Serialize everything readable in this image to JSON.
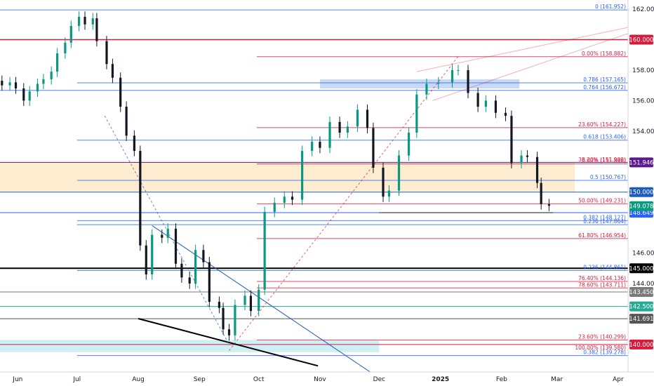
{
  "chart_data": {
    "type": "candlestick",
    "price_axis": {
      "ticks": [
        "162.000",
        "158.000",
        "156.000",
        "154.000",
        "146.000",
        "144.000"
      ],
      "tick_values": [
        162,
        158,
        156,
        154,
        146,
        144
      ],
      "ylim": [
        138.2,
        162.6
      ]
    },
    "time_axis": {
      "labels": [
        "Jun",
        "Jul",
        "Aug",
        "Sep",
        "Oct",
        "Nov",
        "Dec",
        "2025",
        "Feb",
        "Mar",
        "Apr"
      ],
      "dates": [
        "2024-06-01",
        "2024-07-01",
        "2024-08-01",
        "2024-09-01",
        "2024-10-01",
        "2024-11-01",
        "2024-12-01",
        "2025-01-01",
        "2025-02-01",
        "2025-03-01",
        "2025-04-01"
      ],
      "xlim": [
        "2024-05-23",
        "2025-04-06"
      ]
    },
    "horizontal_levels": [
      {
        "label": "160.000",
        "value": 160.0,
        "color": "#d81b3c"
      },
      {
        "label": "151.946",
        "value": 151.946,
        "color": "#5a1a8c"
      },
      {
        "label": "150.000",
        "value": 150.0,
        "color": "#1e5bbf"
      },
      {
        "label": "148.649",
        "value": 148.649,
        "color": "#2962ff"
      },
      {
        "label": "145.000",
        "value": 145.0,
        "color": "#000000"
      },
      {
        "label": "143.450",
        "value": 143.45,
        "color": "#7a7a7a"
      },
      {
        "label": "142.500",
        "value": 142.5,
        "color": "#22ab94"
      },
      {
        "label": "141.691",
        "value": 141.691,
        "color": "#555555"
      },
      {
        "label": "140.000",
        "value": 140.0,
        "color": "#d81b3c"
      }
    ],
    "current_price": {
      "label": "149.078",
      "value": 149.078,
      "color": "#089981"
    },
    "fib_labels": [
      {
        "text": "0 (161.952)",
        "value": 161.952,
        "color": "#2962ff"
      },
      {
        "text": "0.786 (157.165)",
        "value": 157.165,
        "color": "#2962ff"
      },
      {
        "text": "0.764 (156.672)",
        "value": 156.672,
        "color": "#2962ff"
      },
      {
        "text": "0.618 (153.406)",
        "value": 153.406,
        "color": "#2962ff"
      },
      {
        "text": "0.5 (150.767)",
        "value": 150.767,
        "color": "#2962ff"
      },
      {
        "text": "0.382 (148.127)",
        "value": 148.127,
        "color": "#2962ff"
      },
      {
        "text": "0.236 (147.864)",
        "value": 147.864,
        "color": "#2962ff"
      },
      {
        "text": "0.236 (144.861)",
        "value": 144.861,
        "color": "#2962ff"
      },
      {
        "text": "0.382 (139.278)",
        "value": 139.278,
        "color": "#2962ff"
      },
      {
        "text": "0.00% (158.882)",
        "value": 158.882,
        "color": "#d81b3c"
      },
      {
        "text": "23.60% (154.227)",
        "value": 154.227,
        "color": "#d81b3c"
      },
      {
        "text": "0.00% (151.846)",
        "value": 151.846,
        "color": "#d81b3c"
      },
      {
        "text": "38.20% (151.909)",
        "value": 151.909,
        "color": "#d81b3c"
      },
      {
        "text": "50.00% (149.231)",
        "value": 149.231,
        "color": "#d81b3c"
      },
      {
        "text": "61.80% (146.954)",
        "value": 146.954,
        "color": "#d81b3c"
      },
      {
        "text": "76.40% (144.136)",
        "value": 144.136,
        "color": "#d81b3c"
      },
      {
        "text": "78.60% (143.711)",
        "value": 143.711,
        "color": "#d81b3c"
      },
      {
        "text": "23.60% (140.299)",
        "value": 140.299,
        "color": "#d81b3c"
      },
      {
        "text": "100.00% (139.580)",
        "value": 139.58,
        "color": "#d81b3c"
      }
    ],
    "fib_lines": [
      {
        "value": 161.952,
        "color": "#2962ff",
        "from": "2024-05-23"
      },
      {
        "value": 157.165,
        "color": "#2962ff",
        "from": "2024-07-01"
      },
      {
        "value": 156.672,
        "color": "#2962ff",
        "from": "2024-05-23"
      },
      {
        "value": 153.406,
        "color": "#2962ff",
        "from": "2024-07-01"
      },
      {
        "value": 150.767,
        "color": "#2962ff",
        "from": "2024-07-01"
      },
      {
        "value": 148.127,
        "color": "#2962ff",
        "from": "2024-07-01"
      },
      {
        "value": 147.864,
        "color": "#2962ff",
        "from": "2024-07-01"
      },
      {
        "value": 144.861,
        "color": "#2962ff",
        "from": "2024-07-01"
      },
      {
        "value": 139.278,
        "color": "#2962ff",
        "from": "2024-07-01"
      },
      {
        "value": 158.882,
        "color": "#d81b3c",
        "from": "2024-09-30"
      },
      {
        "value": 154.227,
        "color": "#d81b3c",
        "from": "2024-09-30"
      },
      {
        "value": 151.846,
        "color": "#d81b3c",
        "from": "2024-09-30"
      },
      {
        "value": 149.231,
        "color": "#d81b3c",
        "from": "2024-09-30"
      },
      {
        "value": 146.954,
        "color": "#d81b3c",
        "from": "2024-09-30"
      },
      {
        "value": 144.136,
        "color": "#d81b3c",
        "from": "2024-09-30"
      },
      {
        "value": 143.711,
        "color": "#d81b3c",
        "from": "2024-09-30"
      },
      {
        "value": 140.299,
        "color": "#d81b3c",
        "from": "2024-09-30"
      }
    ],
    "zones": [
      {
        "from": "2024-05-23",
        "to": "2025-03-10",
        "low": 150.0,
        "high": 151.946,
        "color": "#fde9c8"
      },
      {
        "from": "2024-11-01",
        "to": "2025-02-10",
        "low": 156.8,
        "high": 157.4,
        "color": "#bcd4f3"
      },
      {
        "from": "2024-05-23",
        "to": "2024-12-01",
        "low": 139.5,
        "high": 140.3,
        "color": "#c5ecf2"
      }
    ],
    "candles_close": [
      {
        "d": "2024-05-24",
        "c": 157.0
      },
      {
        "d": "2024-05-28",
        "c": 157.2
      },
      {
        "d": "2024-05-31",
        "c": 156.8
      },
      {
        "d": "2024-06-04",
        "c": 156.0
      },
      {
        "d": "2024-06-07",
        "c": 156.6
      },
      {
        "d": "2024-06-11",
        "c": 157.1
      },
      {
        "d": "2024-06-14",
        "c": 157.4
      },
      {
        "d": "2024-06-18",
        "c": 157.9
      },
      {
        "d": "2024-06-21",
        "c": 159.1
      },
      {
        "d": "2024-06-25",
        "c": 159.8
      },
      {
        "d": "2024-06-28",
        "c": 160.9
      },
      {
        "d": "2024-07-02",
        "c": 161.5
      },
      {
        "d": "2024-07-05",
        "c": 161.0
      },
      {
        "d": "2024-07-09",
        "c": 161.4
      },
      {
        "d": "2024-07-11",
        "c": 159.9
      },
      {
        "d": "2024-07-16",
        "c": 158.4
      },
      {
        "d": "2024-07-19",
        "c": 157.5
      },
      {
        "d": "2024-07-23",
        "c": 155.6
      },
      {
        "d": "2024-07-26",
        "c": 153.7
      },
      {
        "d": "2024-07-30",
        "c": 152.7
      },
      {
        "d": "2024-08-02",
        "c": 146.5
      },
      {
        "d": "2024-08-05",
        "c": 144.6
      },
      {
        "d": "2024-08-08",
        "c": 147.2
      },
      {
        "d": "2024-08-13",
        "c": 147.0
      },
      {
        "d": "2024-08-16",
        "c": 147.6
      },
      {
        "d": "2024-08-20",
        "c": 145.3
      },
      {
        "d": "2024-08-23",
        "c": 144.4
      },
      {
        "d": "2024-08-27",
        "c": 144.0
      },
      {
        "d": "2024-08-30",
        "c": 146.2
      },
      {
        "d": "2024-09-03",
        "c": 145.4
      },
      {
        "d": "2024-09-06",
        "c": 142.8
      },
      {
        "d": "2024-09-11",
        "c": 142.4
      },
      {
        "d": "2024-09-13",
        "c": 141.0
      },
      {
        "d": "2024-09-16",
        "c": 140.6
      },
      {
        "d": "2024-09-19",
        "c": 142.6
      },
      {
        "d": "2024-09-24",
        "c": 143.2
      },
      {
        "d": "2024-09-27",
        "c": 142.2
      },
      {
        "d": "2024-10-01",
        "c": 143.6
      },
      {
        "d": "2024-10-04",
        "c": 148.7
      },
      {
        "d": "2024-10-09",
        "c": 149.3
      },
      {
        "d": "2024-10-14",
        "c": 149.7
      },
      {
        "d": "2024-10-18",
        "c": 149.5
      },
      {
        "d": "2024-10-23",
        "c": 152.7
      },
      {
        "d": "2024-10-28",
        "c": 153.3
      },
      {
        "d": "2024-11-01",
        "c": 152.9
      },
      {
        "d": "2024-11-06",
        "c": 154.6
      },
      {
        "d": "2024-11-11",
        "c": 153.9
      },
      {
        "d": "2024-11-15",
        "c": 154.3
      },
      {
        "d": "2024-11-20",
        "c": 155.4
      },
      {
        "d": "2024-11-25",
        "c": 154.2
      },
      {
        "d": "2024-11-28",
        "c": 151.6
      },
      {
        "d": "2024-12-03",
        "c": 149.7
      },
      {
        "d": "2024-12-06",
        "c": 150.1
      },
      {
        "d": "2024-12-11",
        "c": 152.4
      },
      {
        "d": "2024-12-16",
        "c": 153.9
      },
      {
        "d": "2024-12-20",
        "c": 156.4
      },
      {
        "d": "2024-12-25",
        "c": 157.1
      },
      {
        "d": "2024-12-31",
        "c": 157.2
      },
      {
        "d": "2025-01-07",
        "c": 158.0
      },
      {
        "d": "2025-01-10",
        "c": 158.0
      },
      {
        "d": "2025-01-15",
        "c": 156.5
      },
      {
        "d": "2025-01-20",
        "c": 155.6
      },
      {
        "d": "2025-01-24",
        "c": 156.0
      },
      {
        "d": "2025-01-29",
        "c": 155.2
      },
      {
        "d": "2025-02-03",
        "c": 155.0
      },
      {
        "d": "2025-02-06",
        "c": 151.9
      },
      {
        "d": "2025-02-11",
        "c": 152.4
      },
      {
        "d": "2025-02-14",
        "c": 152.3
      },
      {
        "d": "2025-02-19",
        "c": 150.6
      },
      {
        "d": "2025-02-21",
        "c": 149.2
      },
      {
        "d": "2025-02-25",
        "c": 149.1
      }
    ]
  }
}
